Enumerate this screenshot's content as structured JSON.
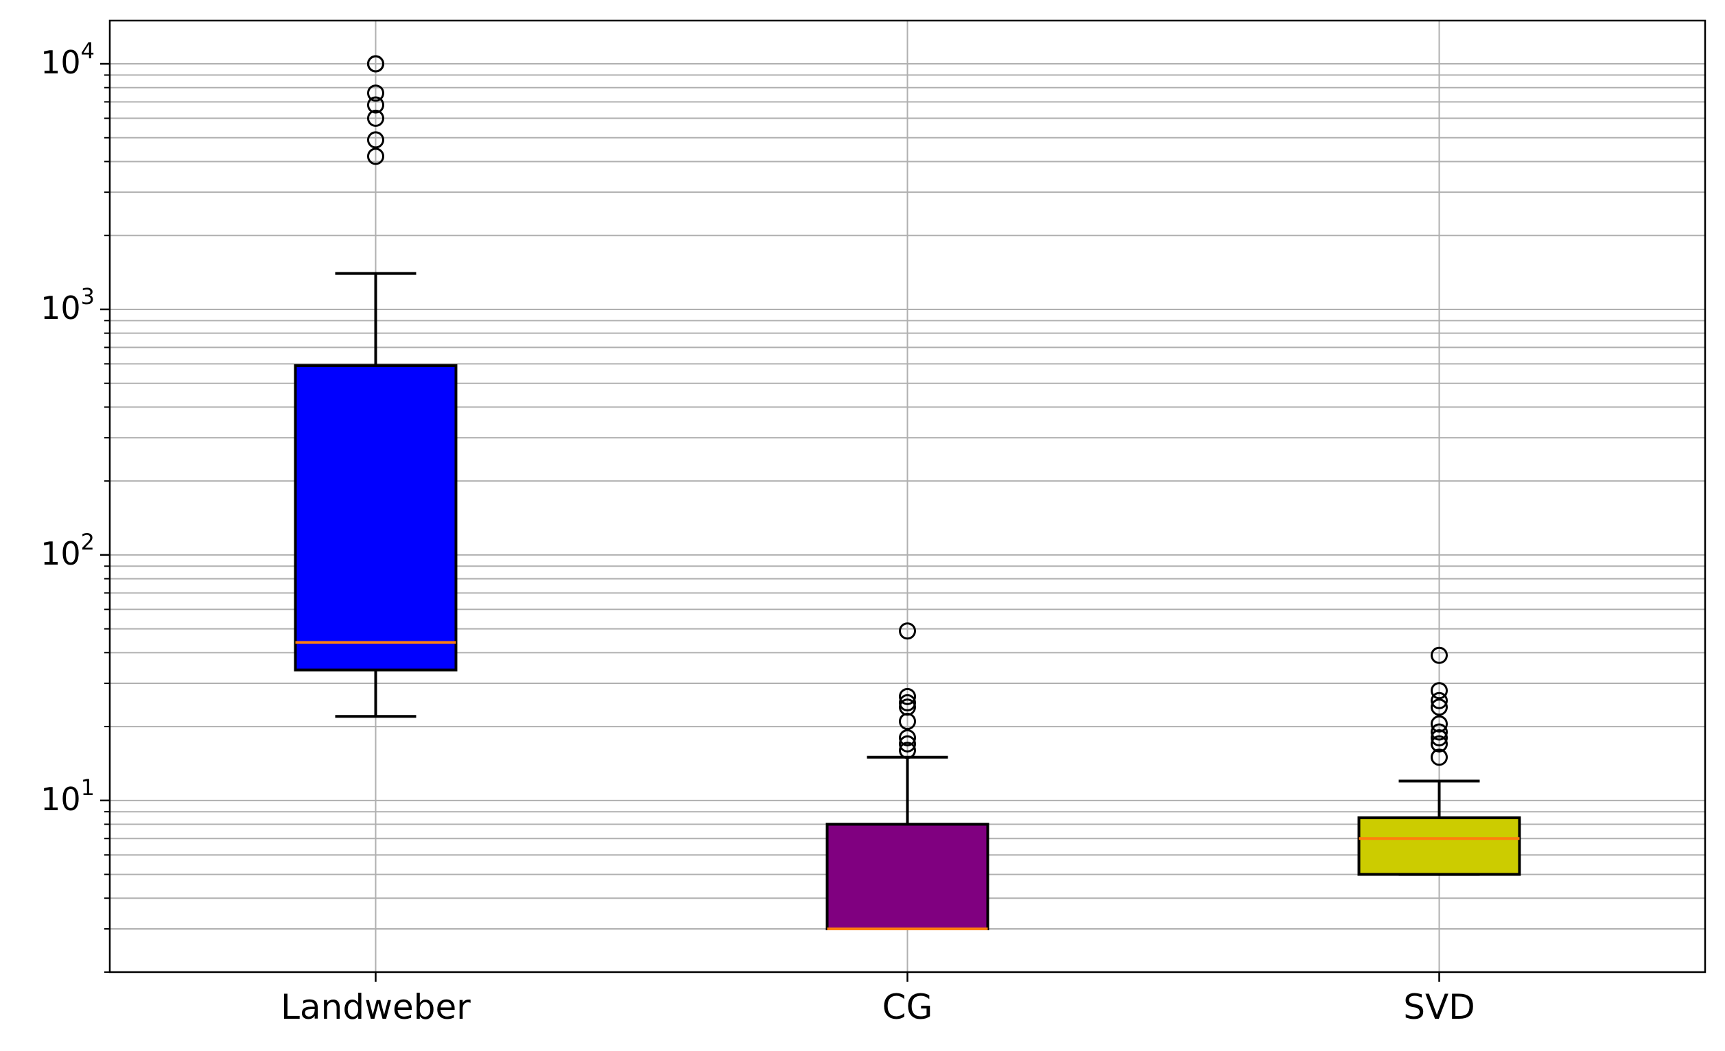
{
  "chart_data": {
    "type": "box",
    "title": "",
    "xlabel": "",
    "ylabel": "",
    "yscale": "log",
    "ylim": [
      2,
      15000
    ],
    "grid": true,
    "yticks": [
      {
        "value": 10,
        "base": "10",
        "exp": "1"
      },
      {
        "value": 100,
        "base": "10",
        "exp": "2"
      },
      {
        "value": 1000,
        "base": "10",
        "exp": "3"
      },
      {
        "value": 10000,
        "base": "10",
        "exp": "4"
      }
    ],
    "categories": [
      "Landweber",
      "CG",
      "SVD"
    ],
    "boxes": [
      {
        "label": "Landweber",
        "color": "#0000ff",
        "q1": 34,
        "median": 44,
        "q3": 590,
        "whisker_low": 22,
        "whisker_high": 1400,
        "outliers": [
          10000,
          10000,
          7600,
          6800,
          6000,
          4900,
          4200
        ]
      },
      {
        "label": "CG",
        "color": "#800080",
        "q1": 3,
        "median": 3,
        "q3": 8,
        "whisker_low": 3,
        "whisker_high": 15,
        "outliers": [
          49,
          26.5,
          25,
          24,
          21,
          18,
          17,
          16
        ]
      },
      {
        "label": "SVD",
        "color": "#cccc00",
        "q1": 5,
        "median": 7,
        "q3": 8.5,
        "whisker_low": 5,
        "whisker_high": 12,
        "outliers": [
          39,
          28,
          25.5,
          24,
          20.5,
          19,
          18,
          17,
          15
        ]
      }
    ],
    "median_color": "#ff7f0e"
  }
}
